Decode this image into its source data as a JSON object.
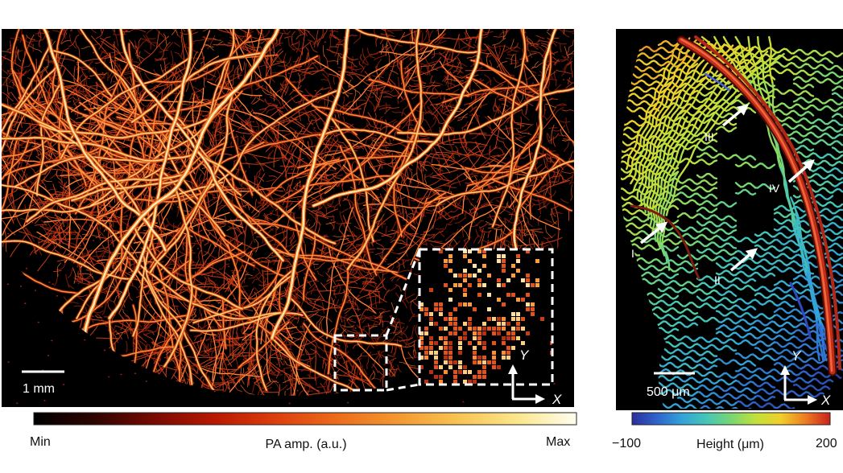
{
  "left_panel": {
    "scale_bar_label": "1 mm",
    "axes": {
      "y_label": "Y",
      "x_label": "X"
    },
    "colorbar": {
      "min_label": "Min",
      "title": "PA amp. (a.u.)",
      "max_label": "Max",
      "colormap": [
        "#000000",
        "#2e0400",
        "#7a0a00",
        "#b81800",
        "#dc3e0c",
        "#ec6a1a",
        "#f49630",
        "#f8c250",
        "#fbe68a",
        "#fffdf0"
      ]
    }
  },
  "right_panel": {
    "scale_bar_label": "500 μm",
    "axes": {
      "y_label": "Y",
      "x_label": "X"
    },
    "arrow_labels": [
      "I",
      "II",
      "III",
      "IV"
    ],
    "colorbar": {
      "min_label": "−100",
      "title": "Height (μm)",
      "max_label": "200",
      "colormap": [
        "#2b2f9c",
        "#2f63cc",
        "#33a2d8",
        "#45c6b8",
        "#78d672",
        "#c2e03c",
        "#f0cf2a",
        "#ee7c22",
        "#c8221c"
      ]
    }
  }
}
